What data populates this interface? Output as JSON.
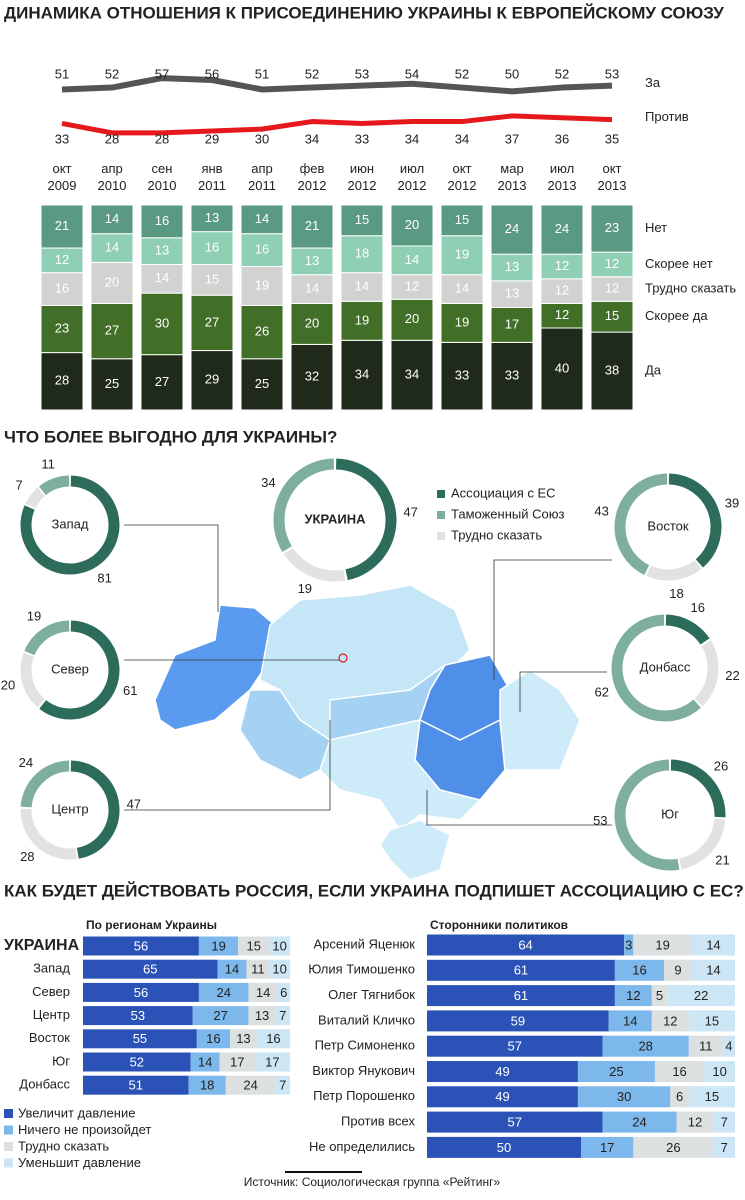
{
  "chart_data": [
    {
      "type": "line",
      "title": "ДИНАМИКА ОТНОШЕНИЯ К ПРИСОЕДИНЕНИЮ УКРАИНЫ К ЕВРОПЕЙСКОМУ СОЮЗУ",
      "categories": [
        "окт 2009",
        "апр 2010",
        "сен 2010",
        "янв 2011",
        "апр 2011",
        "фев 2012",
        "июн 2012",
        "июл 2012",
        "окт 2012",
        "мар 2013",
        "июл 2013",
        "окт 2013"
      ],
      "series": [
        {
          "name": "За",
          "color": "#555555",
          "values": [
            51,
            52,
            57,
            56,
            51,
            52,
            53,
            54,
            52,
            50,
            52,
            53
          ]
        },
        {
          "name": "Против",
          "color": "#e5191c",
          "values": [
            33,
            28,
            28,
            29,
            30,
            34,
            33,
            34,
            34,
            37,
            36,
            35
          ]
        }
      ],
      "ylim": [
        20,
        65
      ]
    },
    {
      "type": "stacked_bar",
      "series": [
        {
          "name": "Да",
          "color": "#1f2a1b",
          "values": [
            28,
            25,
            27,
            29,
            25,
            32,
            34,
            34,
            33,
            33,
            40,
            38
          ]
        },
        {
          "name": "Скорее да",
          "color": "#416f27",
          "values": [
            23,
            27,
            30,
            27,
            26,
            20,
            19,
            20,
            19,
            17,
            12,
            15
          ]
        },
        {
          "name": "Трудно сказать",
          "color": "#d2d2d0",
          "values": [
            16,
            20,
            14,
            15,
            19,
            14,
            14,
            12,
            14,
            13,
            12,
            12
          ]
        },
        {
          "name": "Скорее нет",
          "color": "#8fd0b5",
          "values": [
            12,
            14,
            13,
            16,
            16,
            13,
            18,
            14,
            19,
            13,
            12,
            12
          ]
        },
        {
          "name": "Нет",
          "color": "#5b9a82",
          "values": [
            21,
            14,
            16,
            13,
            14,
            21,
            15,
            20,
            15,
            24,
            24,
            23
          ]
        }
      ],
      "ylim": [
        0,
        100
      ]
    },
    {
      "type": "donut",
      "title": "ЧТО БОЛЕЕ ВЫГОДНО ДЛЯ УКРАИНЫ?",
      "categories": [
        "Ассоциация с ЕС",
        "Таможенный Союз",
        "Трудно сказать"
      ],
      "colors": [
        "#2d6b5a",
        "#7eae9c",
        "#e2e2e2"
      ],
      "series": [
        {
          "name": "УКРАИНА",
          "values": [
            47,
            34,
            19
          ]
        },
        {
          "name": "Запад",
          "values": [
            81,
            11,
            7
          ]
        },
        {
          "name": "Восток",
          "values": [
            39,
            43,
            18
          ]
        },
        {
          "name": "Север",
          "values": [
            61,
            19,
            20
          ]
        },
        {
          "name": "Донбасс",
          "values": [
            16,
            62,
            22
          ]
        },
        {
          "name": "Центр",
          "values": [
            47,
            24,
            28
          ]
        },
        {
          "name": "Юг",
          "values": [
            26,
            53,
            21
          ]
        }
      ]
    },
    {
      "type": "hbar_stacked",
      "title": "КАК БУДЕТ ДЕЙСТВОВАТЬ РОССИЯ, ЕСЛИ УКРАИНА ПОДПИШЕТ АССОЦИАЦИЮ С ЕС?",
      "subtitle": "По регионам Украины",
      "categories": [
        "УКРАИНА",
        "Запад",
        "Север",
        "Центр",
        "Восток",
        "Юг",
        "Донбасс"
      ],
      "series": [
        {
          "name": "Увеличит давление",
          "color": "#2b52b6",
          "values": [
            56,
            65,
            56,
            53,
            55,
            52,
            51
          ]
        },
        {
          "name": "Ничего не произойдет",
          "color": "#7db8ec",
          "values": [
            19,
            14,
            24,
            27,
            16,
            14,
            18
          ]
        },
        {
          "name": "Трудно сказать",
          "color": "#dde0e0",
          "values": [
            15,
            11,
            14,
            13,
            13,
            17,
            24
          ]
        },
        {
          "name": "Уменьшит давление",
          "color": "#cde6f6",
          "values": [
            10,
            10,
            6,
            7,
            16,
            17,
            7
          ]
        }
      ],
      "xlim": [
        0,
        100
      ]
    },
    {
      "type": "hbar_stacked",
      "subtitle": "Сторонники политиков",
      "categories": [
        "Арсений Яценюк",
        "Юлия Тимошенко",
        "Олег Тягнибок",
        "Виталий Кличко",
        "Петр Симоненко",
        "Виктор Янукович",
        "Петр Порошенко",
        "Против всех",
        "Не определились"
      ],
      "series": [
        {
          "color": "#2b52b6",
          "values": [
            64,
            61,
            61,
            59,
            57,
            49,
            49,
            57,
            50
          ]
        },
        {
          "color": "#7db8ec",
          "values": [
            3,
            16,
            12,
            14,
            28,
            25,
            30,
            24,
            17
          ]
        },
        {
          "color": "#dde0e0",
          "values": [
            19,
            9,
            5,
            12,
            11,
            16,
            6,
            12,
            26
          ]
        },
        {
          "color": "#cde6f6",
          "values": [
            14,
            14,
            22,
            15,
            4,
            10,
            15,
            7,
            7
          ]
        }
      ],
      "xlim": [
        0,
        100
      ]
    }
  ],
  "source": "Источник: Социологическая группа «Рейтинг»"
}
